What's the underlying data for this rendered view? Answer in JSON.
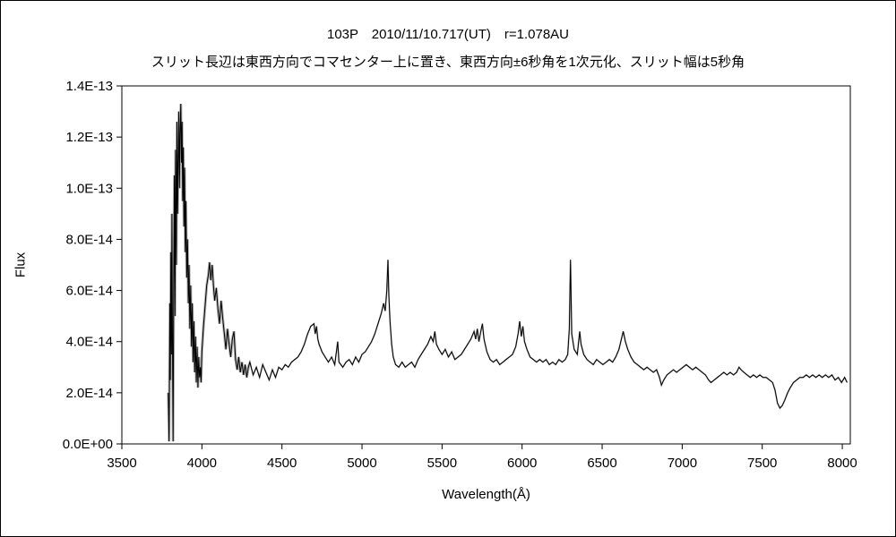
{
  "chart_data": {
    "type": "line",
    "title": "103P　2010/11/10.717(UT)　r=1.078AU",
    "subtitle": "スリット長辺は東西方向でコマセンター上に置き、東西方向±6秒角を1次元化、スリット幅は5秒角",
    "xlabel": "Wavelength(Å)",
    "ylabel": "Flux",
    "xlim": [
      3500,
      8050
    ],
    "ylim": [
      0,
      1.4e-13
    ],
    "grid": false,
    "legend": false,
    "background_color": "#ffffff",
    "line_color": "#000000",
    "noise_color": "#b3b3b3",
    "flux_scale": 1e-14,
    "x_ticks": [
      3500,
      4000,
      4500,
      5000,
      5500,
      6000,
      6500,
      7000,
      7500,
      8000
    ],
    "y_ticks": [
      {
        "value": 0,
        "label": "0.0E+00"
      },
      {
        "value": 2e-14,
        "label": "2.0E-14"
      },
      {
        "value": 4e-14,
        "label": "4.0E-14"
      },
      {
        "value": 6e-14,
        "label": "6.0E-14"
      },
      {
        "value": 8e-14,
        "label": "8.0E-14"
      },
      {
        "value": 1e-13,
        "label": "1.0E-13"
      },
      {
        "value": 1.2e-13,
        "label": "1.2E-13"
      },
      {
        "value": 1.4e-13,
        "label": "1.4E-13"
      }
    ],
    "points": [
      [
        3790,
        2.0
      ],
      [
        3795,
        0.1
      ],
      [
        3800,
        5.5
      ],
      [
        3803,
        2.5
      ],
      [
        3806,
        7.5
      ],
      [
        3810,
        3.5
      ],
      [
        3813,
        9.0
      ],
      [
        3816,
        4.0
      ],
      [
        3820,
        0.1
      ],
      [
        3824,
        6.5
      ],
      [
        3828,
        10.5
      ],
      [
        3832,
        5.0
      ],
      [
        3836,
        11.5
      ],
      [
        3840,
        7.0
      ],
      [
        3844,
        12.6
      ],
      [
        3848,
        9.0
      ],
      [
        3852,
        11.0
      ],
      [
        3856,
        13.0
      ],
      [
        3860,
        10.0
      ],
      [
        3864,
        12.2
      ],
      [
        3868,
        13.3
      ],
      [
        3872,
        11.0
      ],
      [
        3876,
        12.6
      ],
      [
        3880,
        9.5
      ],
      [
        3884,
        11.6
      ],
      [
        3888,
        8.5
      ],
      [
        3892,
        10.8
      ],
      [
        3896,
        7.5
      ],
      [
        3900,
        9.5
      ],
      [
        3905,
        6.5
      ],
      [
        3910,
        8.0
      ],
      [
        3915,
        5.5
      ],
      [
        3920,
        7.0
      ],
      [
        3925,
        4.5
      ],
      [
        3930,
        6.2
      ],
      [
        3935,
        3.8
      ],
      [
        3940,
        5.5
      ],
      [
        3945,
        3.2
      ],
      [
        3950,
        4.8
      ],
      [
        3955,
        2.8
      ],
      [
        3960,
        4.2
      ],
      [
        3965,
        2.4
      ],
      [
        3970,
        3.8
      ],
      [
        3975,
        2.2
      ],
      [
        3980,
        3.4
      ],
      [
        3985,
        2.6
      ],
      [
        3990,
        3.0
      ],
      [
        3995,
        2.4
      ],
      [
        4000,
        3.6
      ],
      [
        4010,
        4.6
      ],
      [
        4020,
        5.4
      ],
      [
        4030,
        6.2
      ],
      [
        4040,
        6.6
      ],
      [
        4048,
        7.1
      ],
      [
        4056,
        6.4
      ],
      [
        4064,
        7.0
      ],
      [
        4072,
        6.2
      ],
      [
        4080,
        5.6
      ],
      [
        4090,
        6.1
      ],
      [
        4100,
        5.3
      ],
      [
        4110,
        4.7
      ],
      [
        4120,
        5.6
      ],
      [
        4130,
        4.9
      ],
      [
        4140,
        4.3
      ],
      [
        4150,
        3.7
      ],
      [
        4160,
        4.5
      ],
      [
        4170,
        3.9
      ],
      [
        4180,
        3.4
      ],
      [
        4190,
        4.1
      ],
      [
        4200,
        4.4
      ],
      [
        4210,
        3.3
      ],
      [
        4220,
        2.9
      ],
      [
        4230,
        3.4
      ],
      [
        4240,
        2.8
      ],
      [
        4250,
        3.2
      ],
      [
        4260,
        2.7
      ],
      [
        4270,
        3.1
      ],
      [
        4280,
        2.6
      ],
      [
        4290,
        3.0
      ],
      [
        4300,
        3.2
      ],
      [
        4320,
        2.7
      ],
      [
        4340,
        3.0
      ],
      [
        4360,
        2.6
      ],
      [
        4380,
        3.1
      ],
      [
        4400,
        2.8
      ],
      [
        4420,
        2.5
      ],
      [
        4440,
        2.9
      ],
      [
        4460,
        2.6
      ],
      [
        4480,
        3.0
      ],
      [
        4500,
        2.9
      ],
      [
        4520,
        3.1
      ],
      [
        4540,
        3.0
      ],
      [
        4560,
        3.2
      ],
      [
        4580,
        3.3
      ],
      [
        4600,
        3.4
      ],
      [
        4620,
        3.6
      ],
      [
        4640,
        3.9
      ],
      [
        4660,
        4.3
      ],
      [
        4680,
        4.6
      ],
      [
        4700,
        4.7
      ],
      [
        4708,
        4.3
      ],
      [
        4716,
        4.6
      ],
      [
        4724,
        4.1
      ],
      [
        4732,
        3.9
      ],
      [
        4750,
        3.6
      ],
      [
        4770,
        3.4
      ],
      [
        4790,
        3.2
      ],
      [
        4810,
        3.4
      ],
      [
        4830,
        3.1
      ],
      [
        4848,
        4.0
      ],
      [
        4856,
        3.2
      ],
      [
        4880,
        3.0
      ],
      [
        4900,
        3.2
      ],
      [
        4920,
        3.3
      ],
      [
        4940,
        3.1
      ],
      [
        4960,
        3.4
      ],
      [
        4980,
        3.2
      ],
      [
        5000,
        3.5
      ],
      [
        5020,
        3.6
      ],
      [
        5040,
        3.8
      ],
      [
        5060,
        4.0
      ],
      [
        5080,
        4.3
      ],
      [
        5100,
        4.7
      ],
      [
        5120,
        5.1
      ],
      [
        5135,
        5.5
      ],
      [
        5145,
        5.2
      ],
      [
        5155,
        6.0
      ],
      [
        5162,
        7.2
      ],
      [
        5168,
        5.8
      ],
      [
        5175,
        4.8
      ],
      [
        5185,
        3.9
      ],
      [
        5195,
        3.4
      ],
      [
        5210,
        3.1
      ],
      [
        5230,
        3.0
      ],
      [
        5250,
        3.2
      ],
      [
        5270,
        3.0
      ],
      [
        5290,
        3.1
      ],
      [
        5310,
        3.2
      ],
      [
        5330,
        3.0
      ],
      [
        5350,
        3.3
      ],
      [
        5370,
        3.5
      ],
      [
        5390,
        3.7
      ],
      [
        5410,
        3.9
      ],
      [
        5430,
        4.2
      ],
      [
        5445,
        4.0
      ],
      [
        5455,
        4.4
      ],
      [
        5465,
        3.9
      ],
      [
        5480,
        3.7
      ],
      [
        5500,
        3.5
      ],
      [
        5520,
        3.7
      ],
      [
        5540,
        3.4
      ],
      [
        5560,
        3.6
      ],
      [
        5580,
        3.3
      ],
      [
        5600,
        3.4
      ],
      [
        5620,
        3.5
      ],
      [
        5640,
        3.7
      ],
      [
        5660,
        3.9
      ],
      [
        5680,
        4.1
      ],
      [
        5700,
        4.4
      ],
      [
        5710,
        4.1
      ],
      [
        5720,
        4.5
      ],
      [
        5730,
        4.0
      ],
      [
        5742,
        4.4
      ],
      [
        5752,
        4.7
      ],
      [
        5762,
        4.1
      ],
      [
        5780,
        3.6
      ],
      [
        5800,
        3.3
      ],
      [
        5820,
        3.2
      ],
      [
        5840,
        3.3
      ],
      [
        5860,
        3.1
      ],
      [
        5880,
        3.2
      ],
      [
        5900,
        3.3
      ],
      [
        5920,
        3.4
      ],
      [
        5940,
        3.5
      ],
      [
        5960,
        3.8
      ],
      [
        5975,
        4.3
      ],
      [
        5985,
        4.8
      ],
      [
        5995,
        4.2
      ],
      [
        6005,
        4.6
      ],
      [
        6015,
        4.0
      ],
      [
        6030,
        3.7
      ],
      [
        6050,
        3.4
      ],
      [
        6070,
        3.3
      ],
      [
        6090,
        3.2
      ],
      [
        6110,
        3.3
      ],
      [
        6130,
        3.2
      ],
      [
        6150,
        3.3
      ],
      [
        6170,
        3.1
      ],
      [
        6190,
        3.2
      ],
      [
        6210,
        3.1
      ],
      [
        6230,
        3.3
      ],
      [
        6250,
        3.2
      ],
      [
        6270,
        3.3
      ],
      [
        6285,
        3.5
      ],
      [
        6295,
        4.5
      ],
      [
        6302,
        7.2
      ],
      [
        6310,
        4.3
      ],
      [
        6325,
        3.7
      ],
      [
        6345,
        3.5
      ],
      [
        6360,
        4.4
      ],
      [
        6368,
        3.9
      ],
      [
        6385,
        3.5
      ],
      [
        6405,
        3.3
      ],
      [
        6425,
        3.2
      ],
      [
        6445,
        3.1
      ],
      [
        6465,
        3.3
      ],
      [
        6485,
        3.2
      ],
      [
        6505,
        3.1
      ],
      [
        6525,
        3.2
      ],
      [
        6545,
        3.3
      ],
      [
        6565,
        3.2
      ],
      [
        6585,
        3.4
      ],
      [
        6605,
        3.7
      ],
      [
        6620,
        4.1
      ],
      [
        6632,
        4.4
      ],
      [
        6645,
        4.0
      ],
      [
        6660,
        3.7
      ],
      [
        6680,
        3.4
      ],
      [
        6700,
        3.2
      ],
      [
        6720,
        3.1
      ],
      [
        6740,
        3.0
      ],
      [
        6760,
        2.9
      ],
      [
        6780,
        3.0
      ],
      [
        6800,
        2.9
      ],
      [
        6820,
        2.8
      ],
      [
        6840,
        2.9
      ],
      [
        6858,
        2.6
      ],
      [
        6870,
        2.3
      ],
      [
        6885,
        2.5
      ],
      [
        6905,
        2.7
      ],
      [
        6925,
        2.8
      ],
      [
        6945,
        2.9
      ],
      [
        6965,
        2.8
      ],
      [
        6985,
        2.9
      ],
      [
        7005,
        3.0
      ],
      [
        7025,
        3.1
      ],
      [
        7045,
        3.0
      ],
      [
        7065,
        2.9
      ],
      [
        7085,
        3.0
      ],
      [
        7105,
        2.9
      ],
      [
        7125,
        2.8
      ],
      [
        7145,
        2.7
      ],
      [
        7165,
        2.5
      ],
      [
        7180,
        2.4
      ],
      [
        7200,
        2.5
      ],
      [
        7220,
        2.6
      ],
      [
        7240,
        2.7
      ],
      [
        7260,
        2.8
      ],
      [
        7280,
        2.7
      ],
      [
        7300,
        2.8
      ],
      [
        7320,
        2.7
      ],
      [
        7340,
        2.8
      ],
      [
        7355,
        3.0
      ],
      [
        7368,
        2.9
      ],
      [
        7385,
        2.8
      ],
      [
        7405,
        2.7
      ],
      [
        7425,
        2.6
      ],
      [
        7445,
        2.7
      ],
      [
        7465,
        2.6
      ],
      [
        7485,
        2.7
      ],
      [
        7505,
        2.6
      ],
      [
        7525,
        2.6
      ],
      [
        7545,
        2.5
      ],
      [
        7565,
        2.4
      ],
      [
        7580,
        2.1
      ],
      [
        7595,
        1.6
      ],
      [
        7610,
        1.4
      ],
      [
        7625,
        1.5
      ],
      [
        7640,
        1.7
      ],
      [
        7658,
        2.0
      ],
      [
        7675,
        2.2
      ],
      [
        7695,
        2.4
      ],
      [
        7715,
        2.5
      ],
      [
        7735,
        2.6
      ],
      [
        7755,
        2.6
      ],
      [
        7775,
        2.7
      ],
      [
        7795,
        2.6
      ],
      [
        7815,
        2.7
      ],
      [
        7835,
        2.6
      ],
      [
        7855,
        2.7
      ],
      [
        7875,
        2.6
      ],
      [
        7895,
        2.7
      ],
      [
        7915,
        2.6
      ],
      [
        7935,
        2.7
      ],
      [
        7955,
        2.5
      ],
      [
        7975,
        2.6
      ],
      [
        7995,
        2.4
      ],
      [
        8015,
        2.6
      ],
      [
        8030,
        2.4
      ]
    ]
  }
}
